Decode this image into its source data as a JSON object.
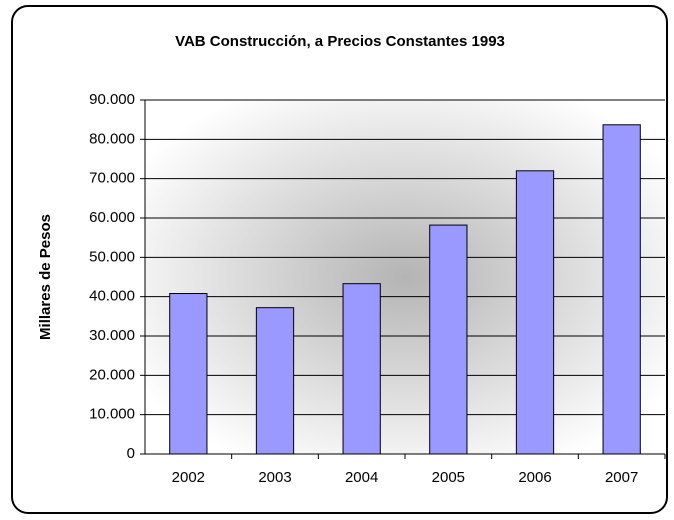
{
  "chart_data": {
    "type": "bar",
    "title": "VAB Construcción, a Precios Constantes 1993",
    "y_label": "Millares de Pesos",
    "categories": [
      "2002",
      "2003",
      "2004",
      "2005",
      "2006",
      "2007"
    ],
    "values": [
      40800,
      37200,
      43300,
      58200,
      72000,
      83700
    ],
    "color": "#9999ff",
    "ylim": [
      0,
      90000
    ],
    "yticks": [
      0,
      {
        "value": 10000,
        "label": "10.000"
      },
      {
        "value": 20000,
        "label": "20.000"
      },
      {
        "value": 30000,
        "label": "30.000"
      },
      {
        "value": 40000,
        "label": "40.000"
      },
      {
        "value": 50000,
        "label": "50.000"
      },
      {
        "value": 60000,
        "label": "60.000"
      },
      {
        "value": 70000,
        "label": "70.000"
      },
      {
        "value": 80000,
        "label": "80.000"
      },
      {
        "value": 90000,
        "label": "90.000"
      }
    ],
    "grid": true
  }
}
